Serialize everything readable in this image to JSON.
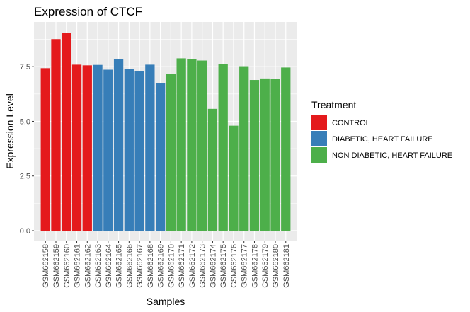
{
  "chart_data": {
    "type": "bar",
    "title": "Expression of  CTCF",
    "xlabel": "Samples",
    "ylabel": "Expression Level",
    "ylim": [
      0,
      9.35
    ],
    "yticks": [
      0.0,
      2.5,
      5.0,
      7.5
    ],
    "ytick_labels": [
      "0.0",
      "2.5",
      "5.0",
      "7.5"
    ],
    "grid": true,
    "legend_position": "right",
    "legend_title": "Treatment",
    "groups": [
      {
        "name": "CONTROL",
        "color": "#E41A1C"
      },
      {
        "name": "DIABETIC, HEART FAILURE",
        "color": "#377EB8"
      },
      {
        "name": "NON DIABETIC, HEART FAILURE",
        "color": "#4DAF4A"
      }
    ],
    "categories": [
      "GSM662158",
      "GSM662159",
      "GSM662160",
      "GSM662161",
      "GSM662162",
      "GSM662163",
      "GSM662164",
      "GSM662165",
      "GSM662166",
      "GSM662167",
      "GSM662168",
      "GSM662169",
      "GSM662170",
      "GSM662171",
      "GSM662172",
      "GSM662173",
      "GSM662174",
      "GSM662175",
      "GSM662176",
      "GSM662177",
      "GSM662178",
      "GSM662179",
      "GSM662180",
      "GSM662181"
    ],
    "values": [
      7.43,
      8.76,
      9.04,
      7.59,
      7.56,
      7.58,
      7.36,
      7.85,
      7.4,
      7.31,
      7.59,
      6.75,
      7.17,
      7.88,
      7.84,
      7.78,
      5.57,
      7.62,
      4.8,
      7.52,
      6.89,
      6.96,
      6.93,
      7.46
    ],
    "group_of": [
      0,
      0,
      0,
      0,
      0,
      1,
      1,
      1,
      1,
      1,
      1,
      1,
      2,
      2,
      2,
      2,
      2,
      2,
      2,
      2,
      2,
      2,
      2,
      2
    ]
  }
}
